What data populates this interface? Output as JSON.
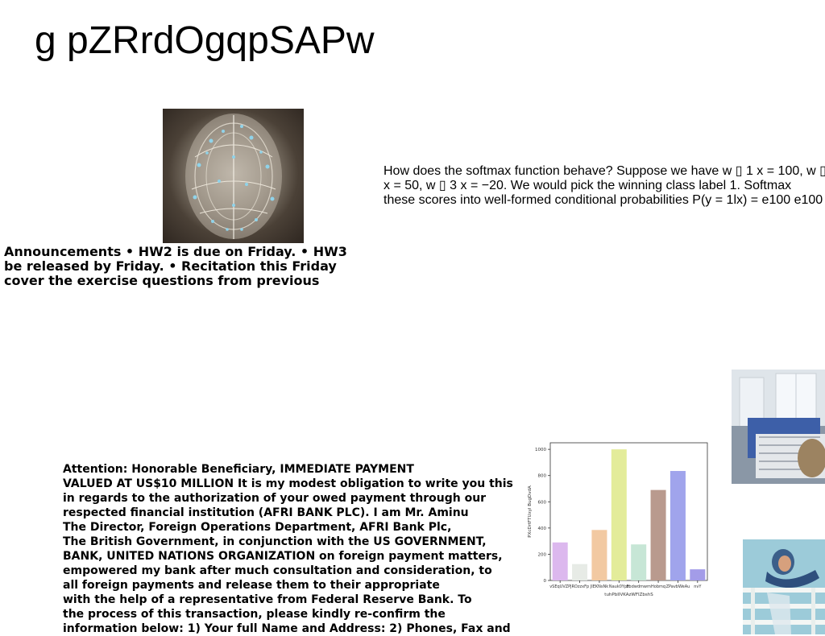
{
  "header": {
    "title": "g pZRrdOgqpSAPw"
  },
  "announcement": {
    "lines": [
      "Announcements • HW2 is due on Friday. • HW3",
      "be released by Friday. • Recitation this Friday",
      "cover the exercise questions from previous"
    ]
  },
  "softmax_text": {
    "lines": [
      "How does the softmax function behave? Suppose we have w ▯ 1 x = 100, w ▯",
      "x = 50, w ▯ 3 x = −20. We would pick the winning class label 1. Softmax",
      "these scores into well-formed conditional probabilities P(y = 1lx) = e100 e100"
    ]
  },
  "letter": {
    "lines": [
      "Attention: Honorable Beneficiary, IMMEDIATE PAYMENT",
      "VALUED AT US$10 MILLION It is my modest obligation to write you this",
      "in regards to the authorization of your owed payment through our",
      "respected financial institution (AFRI BANK PLC). I am Mr. Aminu",
      "The Director, Foreign Operations Department, AFRI Bank Plc,",
      "The British Government, in conjunction with the US GOVERNMENT,",
      "BANK, UNITED NATIONS ORGANIZATION on foreign payment matters,",
      "empowered my bank after much consultation and consideration, to",
      "all foreign payments and release them to their appropriate",
      "with the help of a representative from Federal Reserve Bank. To",
      "the process of this transaction, please kindly re-confirm the",
      "information below: 1) Your full Name and Address: 2) Phones, Fax and"
    ]
  },
  "chart_data": {
    "type": "bar",
    "categories": [
      "vSEqUVZP",
      "JROzzxFp",
      "JIEKNsNk",
      "Nauk0Ypz",
      "Fbdwdmwm",
      "Hobmq",
      "ZPavbWeAu",
      "nvY"
    ],
    "values": [
      290,
      125,
      385,
      1000,
      275,
      690,
      835,
      85
    ],
    "colors": [
      "#dcb8ee",
      "#e7ebe6",
      "#f2c9a2",
      "#e3ec9a",
      "#c7e6d6",
      "#b99a8e",
      "#a0a4ec",
      "#a39ce8"
    ],
    "xlabel": "tuhPbIIVKAzWFIZbshS",
    "ylabel": "PXcDrtFTUxyl BugDvdA",
    "ylim": [
      0,
      1050
    ],
    "yticks": [
      0,
      200,
      400,
      600,
      800,
      1000
    ],
    "grid": false
  }
}
